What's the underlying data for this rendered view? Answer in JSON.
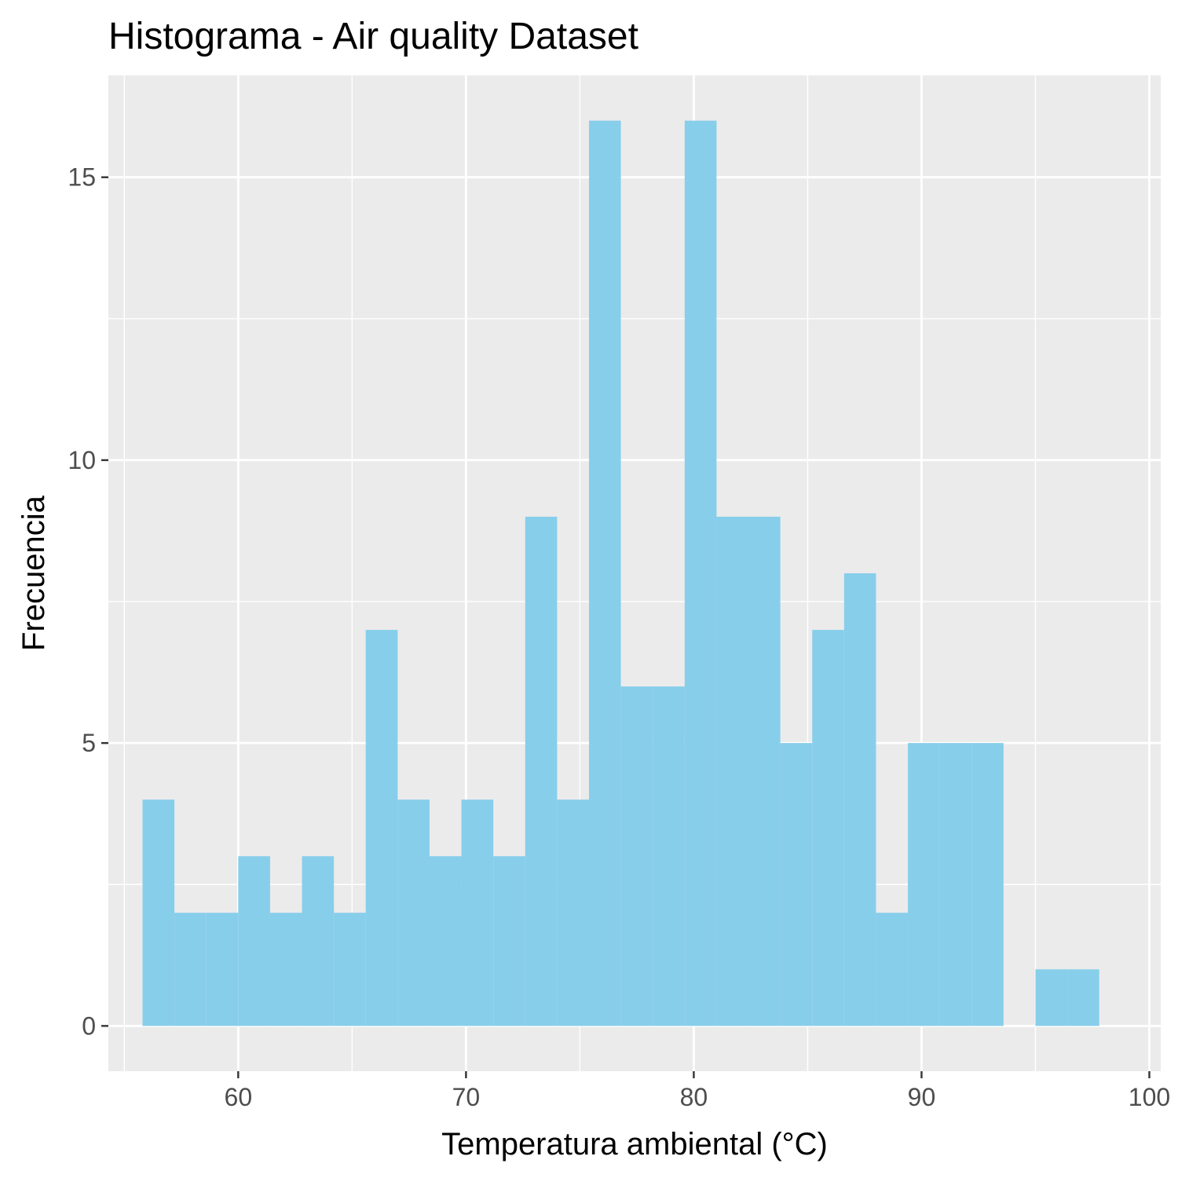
{
  "chart_data": {
    "type": "bar",
    "title": "Histograma - Air quality Dataset",
    "xlabel": "Temperatura ambiental (°C)",
    "ylabel": "Frecuencia",
    "bin_width": 1.4,
    "bins": [
      {
        "x0": 55.8,
        "x1": 57.2,
        "count": 4
      },
      {
        "x0": 57.2,
        "x1": 58.6,
        "count": 2
      },
      {
        "x0": 58.6,
        "x1": 60.0,
        "count": 2
      },
      {
        "x0": 60.0,
        "x1": 61.4,
        "count": 3
      },
      {
        "x0": 61.4,
        "x1": 62.8,
        "count": 2
      },
      {
        "x0": 62.8,
        "x1": 64.2,
        "count": 3
      },
      {
        "x0": 64.2,
        "x1": 65.6,
        "count": 2
      },
      {
        "x0": 65.6,
        "x1": 67.0,
        "count": 7
      },
      {
        "x0": 67.0,
        "x1": 68.4,
        "count": 4
      },
      {
        "x0": 68.4,
        "x1": 69.8,
        "count": 3
      },
      {
        "x0": 69.8,
        "x1": 71.2,
        "count": 4
      },
      {
        "x0": 71.2,
        "x1": 72.6,
        "count": 3
      },
      {
        "x0": 72.6,
        "x1": 74.0,
        "count": 9
      },
      {
        "x0": 74.0,
        "x1": 75.4,
        "count": 4
      },
      {
        "x0": 75.4,
        "x1": 76.8,
        "count": 16
      },
      {
        "x0": 76.8,
        "x1": 78.2,
        "count": 6
      },
      {
        "x0": 78.2,
        "x1": 79.6,
        "count": 6
      },
      {
        "x0": 79.6,
        "x1": 81.0,
        "count": 16
      },
      {
        "x0": 81.0,
        "x1": 82.4,
        "count": 9
      },
      {
        "x0": 82.4,
        "x1": 83.8,
        "count": 9
      },
      {
        "x0": 83.8,
        "x1": 85.2,
        "count": 5
      },
      {
        "x0": 85.2,
        "x1": 86.6,
        "count": 7
      },
      {
        "x0": 86.6,
        "x1": 88.0,
        "count": 8
      },
      {
        "x0": 88.0,
        "x1": 89.4,
        "count": 2
      },
      {
        "x0": 89.4,
        "x1": 90.8,
        "count": 5
      },
      {
        "x0": 90.8,
        "x1": 92.2,
        "count": 5
      },
      {
        "x0": 92.2,
        "x1": 93.6,
        "count": 5
      },
      {
        "x0": 93.6,
        "x1": 95.0,
        "count": 0
      },
      {
        "x0": 95.0,
        "x1": 96.4,
        "count": 1
      },
      {
        "x0": 96.4,
        "x1": 97.8,
        "count": 1
      }
    ],
    "xlim": [
      54.3,
      100.5
    ],
    "ylim": [
      -0.8,
      16.8
    ],
    "x_ticks": [
      60,
      70,
      80,
      90,
      100
    ],
    "x_tick_labels": [
      "60",
      "70",
      "80",
      "90",
      "100"
    ],
    "y_ticks": [
      0,
      5,
      10,
      15
    ],
    "y_tick_labels": [
      "0",
      "5",
      "10",
      "15"
    ],
    "grid": true,
    "legend": "none",
    "colors": {
      "bar_fill": "#87CEEB",
      "panel_background": "#EBEBEB",
      "grid_line": "#FFFFFF",
      "tick_label": "#4D4D4D",
      "text": "#000000"
    }
  }
}
